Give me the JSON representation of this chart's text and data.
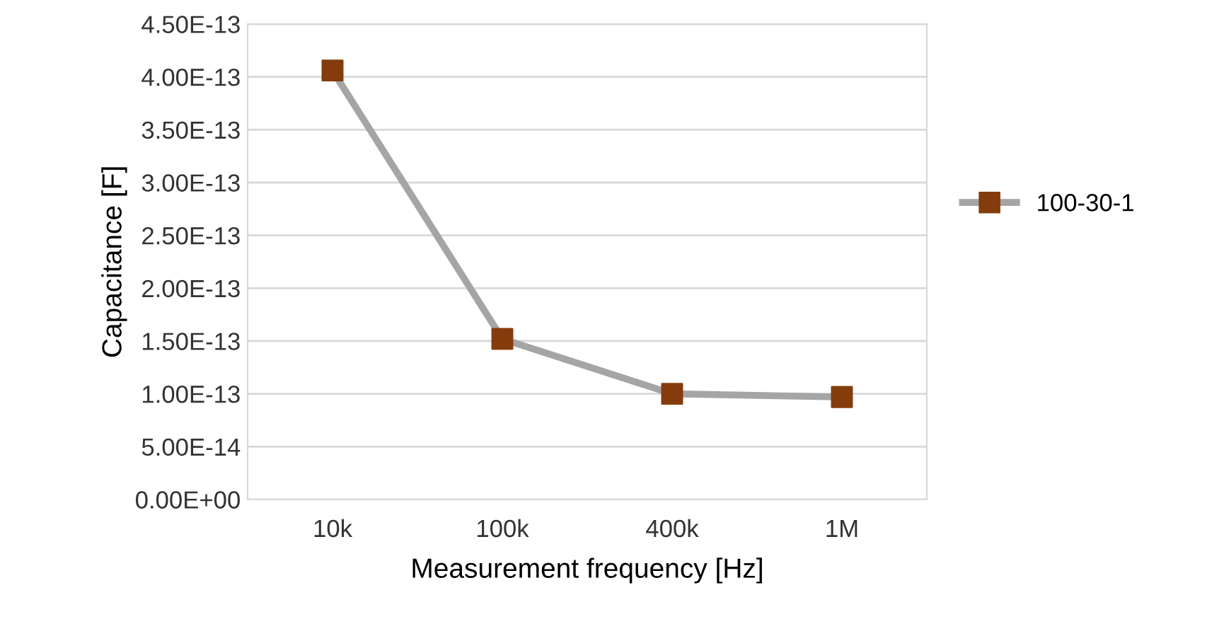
{
  "chart_data": {
    "type": "line",
    "xlabel": "Measurement frequency [Hz]",
    "ylabel": "Capacitance [F]",
    "categories": [
      "10k",
      "100k",
      "400k",
      "1M"
    ],
    "series": [
      {
        "name": "100-30-1",
        "color": "#a5a5a5",
        "colors": [
          "#843c0c",
          "#843c0c",
          "#843c0c",
          "#843c0c"
        ],
        "values": [
          4.06e-13,
          1.52e-13,
          1e-13,
          9.7e-14
        ]
      }
    ],
    "ylim": [
      0,
      4.5e-13
    ],
    "yticks": [
      {
        "value": 0,
        "label": "0.00E+00"
      },
      {
        "value": 5e-14,
        "label": "5.00E-14"
      },
      {
        "value": 1e-13,
        "label": "1.00E-13"
      },
      {
        "value": 1.5e-13,
        "label": "1.50E-13"
      },
      {
        "value": 2e-13,
        "label": "2.00E-13"
      },
      {
        "value": 2.5e-13,
        "label": "2.50E-13"
      },
      {
        "value": 3e-13,
        "label": "3.00E-13"
      },
      {
        "value": 3.5e-13,
        "label": "3.50E-13"
      },
      {
        "value": 4e-13,
        "label": "4.00E-13"
      },
      {
        "value": 4.5e-13,
        "label": "4.50E-13"
      }
    ],
    "grid": "y",
    "legend": "right",
    "marker": "square",
    "line_style": "solid"
  }
}
